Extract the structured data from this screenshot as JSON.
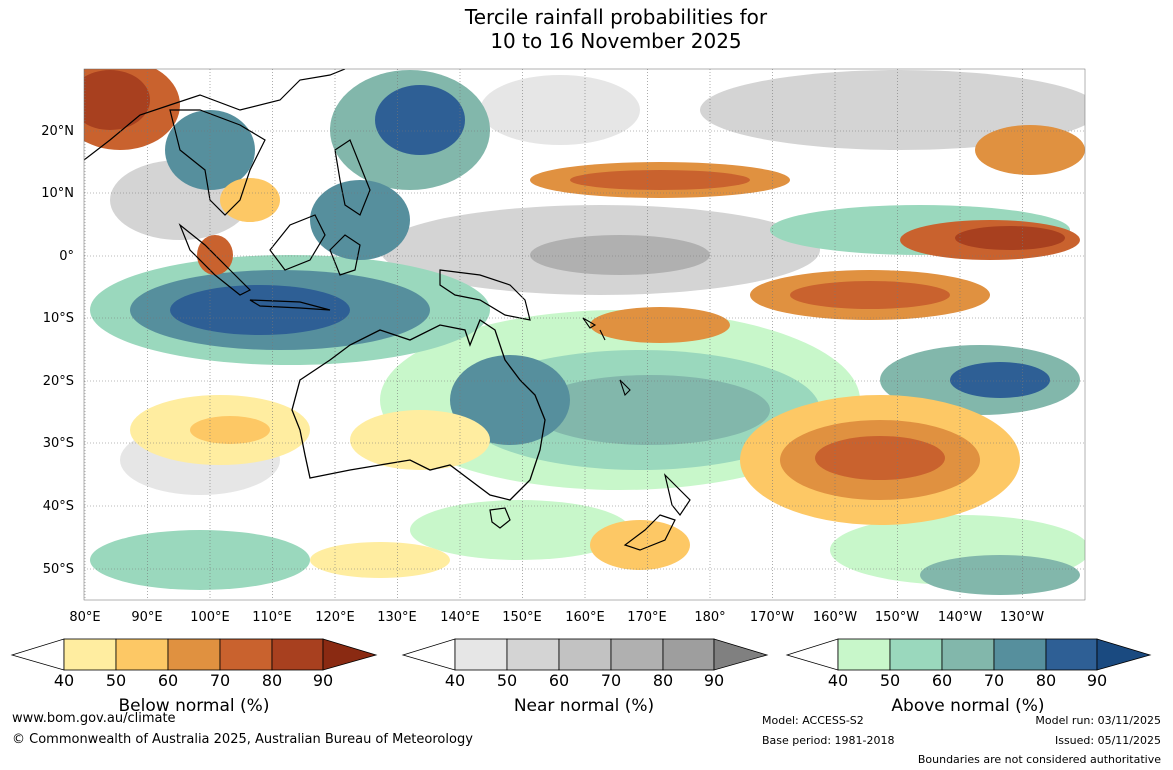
{
  "title": {
    "line1": "Tercile rainfall probabilities for",
    "line2": "10 to 16 November 2025"
  },
  "lat_labels": [
    "20°N",
    "10°N",
    "0°",
    "10°S",
    "20°S",
    "30°S",
    "40°S",
    "50°S"
  ],
  "lon_labels": [
    "80°E",
    "90°E",
    "100°E",
    "110°E",
    "120°E",
    "130°E",
    "140°E",
    "150°E",
    "160°E",
    "170°E",
    "180°",
    "170°W",
    "160°W",
    "150°W",
    "140°W",
    "130°W"
  ],
  "colorbars": [
    {
      "label": "Below normal (%)",
      "ticks": [
        "40",
        "50",
        "60",
        "70",
        "80",
        "90"
      ],
      "colors": [
        "#ffffff",
        "#ffeda0",
        "#fdc865",
        "#e09140",
        "#c9622e",
        "#a8401f",
        "#8a2a12"
      ]
    },
    {
      "label": "Near normal (%)",
      "ticks": [
        "40",
        "50",
        "60",
        "70",
        "80",
        "90"
      ],
      "colors": [
        "#ffffff",
        "#e6e6e6",
        "#d4d4d4",
        "#c2c2c2",
        "#b0b0b0",
        "#9e9e9e",
        "#808080"
      ]
    },
    {
      "label": "Above normal (%)",
      "ticks": [
        "40",
        "50",
        "60",
        "70",
        "80",
        "90"
      ],
      "colors": [
        "#ffffff",
        "#c8f7ca",
        "#9ad8bd",
        "#82b7ab",
        "#568f9d",
        "#2e5f95",
        "#1a4a80"
      ]
    }
  ],
  "footer": {
    "url": "www.bom.gov.au/climate",
    "copyright": "© Commonwealth of Australia 2025, Australian Bureau of Meteorology",
    "model": "Model: ACCESS-S2",
    "base_period": "Base period: 1981-2018",
    "model_run": "Model run: 03/11/2025",
    "issued": "Issued: 05/11/2025",
    "disclaimer": "Boundaries are not considered authoritative"
  },
  "palette": {
    "below": [
      "#ffeda0",
      "#fdc865",
      "#e09140",
      "#c9622e",
      "#a8401f"
    ],
    "near": [
      "#e6e6e6",
      "#d4d4d4",
      "#c2c2c2",
      "#b0b0b0"
    ],
    "above": [
      "#c8f7ca",
      "#9ad8bd",
      "#82b7ab",
      "#568f9d",
      "#2e5f95"
    ]
  }
}
